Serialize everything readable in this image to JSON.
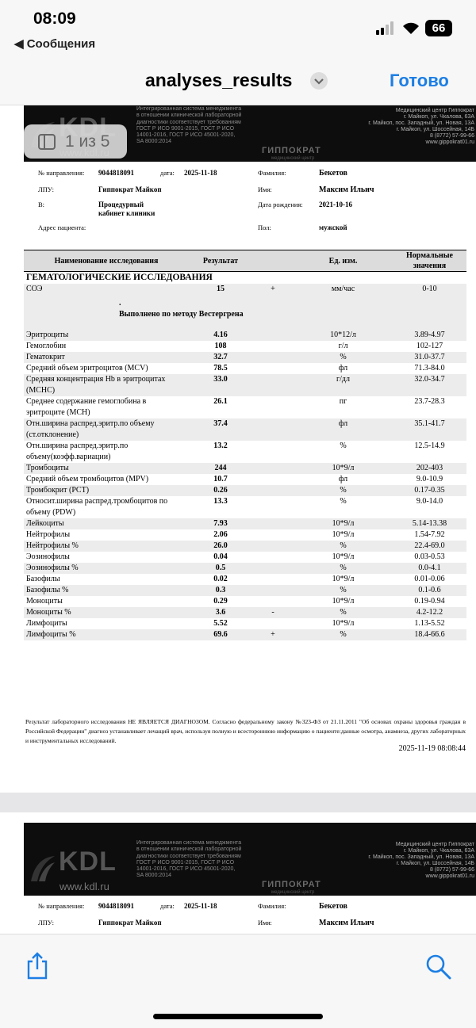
{
  "status_bar": {
    "time": "08:09",
    "back": "Сообщения",
    "battery": "66"
  },
  "nav": {
    "title": "analyses_results",
    "done": "Готово"
  },
  "page_badge": "1 из 5",
  "letterhead": {
    "logo": "KDL",
    "site": "www.kdl.ru",
    "certification": [
      "Интегрированная система менеджмента",
      "в отношении клинической лабораторной",
      "диагностики соответствует требованиям",
      "ГОСТ Р ИСО 9001-2015, ГОСТ Р ИСО",
      "14001-2016, ГОСТ Р ИСО 45001-2020,",
      "SA 8000:2014"
    ],
    "clinic_logo": "ГИППОКРАТ",
    "clinic_logo_sub": "медицинский центр",
    "clinic": [
      "Медицинский центр Гиппократ",
      "г. Майкоп, ул. Чкалова, 63А",
      "г. Майкоп, пос. Западный, ул. Новая, 13А",
      "г. Майкоп, ул. Шоссейная, 14Б",
      "8 (8772) 57-99-66",
      "www.gippokrat01.ru"
    ]
  },
  "patient": {
    "referral_label": "№ направления:",
    "referral": "9044818091",
    "date_label": "дата:",
    "date": "2025-11-18",
    "surname_label": "Фамилия:",
    "surname": "Бекетов",
    "lpu_label": "ЛПУ:",
    "lpu": "Гиппократ Майкоп",
    "name_label": "Имя:",
    "name": "Максим Ильич",
    "in_label": "В:",
    "in": "Процедурный кабинет клиники",
    "birth_label": "Дата рождения:",
    "birth": "2021-10-16",
    "address_label": "Адрес пациента:",
    "sex_label": "Пол:",
    "sex": "мужской"
  },
  "table": {
    "header": [
      "Наименование исследования",
      "Результат",
      "Ед. изм.",
      "Нормальные значения"
    ],
    "section": "ГЕМАТОЛОГИЧЕСКИЕ ИССЛЕДОВАНИЯ",
    "rows": [
      {
        "name": "СОЭ",
        "result": "15",
        "flag": "+",
        "unit": "мм/час",
        "norm": "0-10"
      },
      {
        "note_mark": ".",
        "note": "Выполнено по методу Вестергрена"
      },
      {
        "name": "Эритроциты",
        "result": "4.16",
        "unit": "10*12/л",
        "norm": "3.89-4.97"
      },
      {
        "name": "Гемоглобин",
        "result": "108",
        "unit": "г/л",
        "norm": "102-127"
      },
      {
        "name": "Гематокрит",
        "result": "32.7",
        "unit": "%",
        "norm": "31.0-37.7"
      },
      {
        "name": "Средний объем эритроцитов (MCV)",
        "result": "78.5",
        "unit": "фл",
        "norm": "71.3-84.0"
      },
      {
        "name": "Средняя концентрация Hb в эритроцитах (MCHC)",
        "result": "33.0",
        "unit": "г/дл",
        "norm": "32.0-34.7"
      },
      {
        "name": "Среднее содержание гемоглобина в эритроците (MCH)",
        "result": "26.1",
        "unit": "пг",
        "norm": "23.7-28.3"
      },
      {
        "name": "Отн.ширина распред.эритр.по объему (ст.отклонение)",
        "result": "37.4",
        "unit": "фл",
        "norm": "35.1-41.7"
      },
      {
        "name": "Отн.ширина распред.эритр.по объему(коэфф.вариации)",
        "result": "13.2",
        "unit": "%",
        "norm": "12.5-14.9"
      },
      {
        "name": "Тромбоциты",
        "result": "244",
        "unit": "10*9/л",
        "norm": "202-403"
      },
      {
        "name": "Средний объем тромбоцитов (MPV)",
        "result": "10.7",
        "unit": "фл",
        "norm": "9.0-10.9"
      },
      {
        "name": "Тромбокрит (PCT)",
        "result": "0.26",
        "unit": "%",
        "norm": "0.17-0.35"
      },
      {
        "name": "Относит.ширина распред.тромбоцитов по объему (PDW)",
        "result": "13.3",
        "unit": "%",
        "norm": "9.0-14.0"
      },
      {
        "name": "Лейкоциты",
        "result": "7.93",
        "unit": "10*9/л",
        "norm": "5.14-13.38"
      },
      {
        "name": "Нейтрофилы",
        "result": "2.06",
        "unit": "10*9/л",
        "norm": "1.54-7.92"
      },
      {
        "name": "Нейтрофилы %",
        "result": "26.0",
        "unit": "%",
        "norm": "22.4-69.0"
      },
      {
        "name": "Эозинофилы",
        "result": "0.04",
        "unit": "10*9/л",
        "norm": "0.03-0.53"
      },
      {
        "name": "Эозинофилы %",
        "result": "0.5",
        "unit": "%",
        "norm": "0.0-4.1"
      },
      {
        "name": "Базофилы",
        "result": "0.02",
        "unit": "10*9/л",
        "norm": "0.01-0.06"
      },
      {
        "name": "Базофилы %",
        "result": "0.3",
        "unit": "%",
        "norm": "0.1-0.6"
      },
      {
        "name": "Моноциты",
        "result": "0.29",
        "unit": "10*9/л",
        "norm": "0.19-0.94"
      },
      {
        "name": "Моноциты %",
        "result": "3.6",
        "flag": "-",
        "unit": "%",
        "norm": "4.2-12.2"
      },
      {
        "name": "Лимфоциты",
        "result": "5.52",
        "unit": "10*9/л",
        "norm": "1.13-5.52"
      },
      {
        "name": "Лимфоциты %",
        "result": "69.6",
        "flag": "+",
        "unit": "%",
        "norm": "18.4-66.6"
      }
    ]
  },
  "footer": {
    "disclaimer": "Результат лабораторного исследования НЕ ЯВЛЯЕТСЯ ДИАГНОЗОМ. Согласно федеральному закону №323-ФЗ от 21.11.2011 \"Об основах охраны здоровья граждан в Российской Федерации\" диагноз устанавливает лечащий врач, используя полную и всестороннюю информацию о пациенте:данные осмотра, анамнеза, других лабораторных и инструментальных исследований.",
    "timestamp": "2025-11-19 08:08:44"
  }
}
